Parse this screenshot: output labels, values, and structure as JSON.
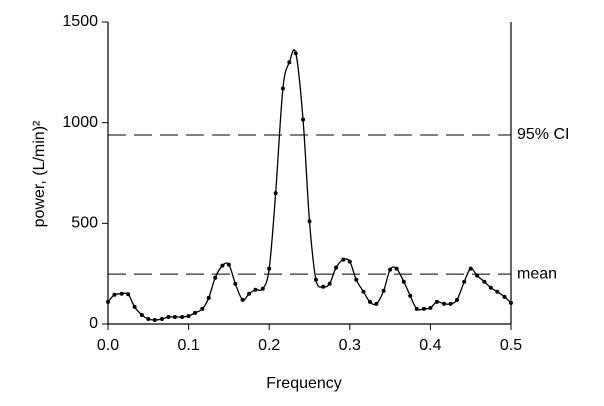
{
  "chart_data": {
    "type": "line",
    "xlabel": "Frequency",
    "ylabel": "power, (L/min)²",
    "x": [
      0.0,
      0.008,
      0.017,
      0.025,
      0.033,
      0.042,
      0.05,
      0.058,
      0.067,
      0.075,
      0.083,
      0.092,
      0.1,
      0.108,
      0.117,
      0.125,
      0.133,
      0.142,
      0.15,
      0.158,
      0.167,
      0.175,
      0.183,
      0.192,
      0.2,
      0.208,
      0.217,
      0.225,
      0.233,
      0.242,
      0.25,
      0.258,
      0.267,
      0.275,
      0.283,
      0.292,
      0.3,
      0.308,
      0.317,
      0.325,
      0.333,
      0.342,
      0.35,
      0.358,
      0.367,
      0.375,
      0.383,
      0.392,
      0.4,
      0.408,
      0.417,
      0.425,
      0.433,
      0.442,
      0.45,
      0.458,
      0.467,
      0.475,
      0.483,
      0.492,
      0.5
    ],
    "series": [
      {
        "color": "#000000",
        "values": [
          110,
          145,
          150,
          148,
          85,
          45,
          25,
          20,
          25,
          35,
          35,
          35,
          40,
          55,
          75,
          130,
          230,
          290,
          295,
          200,
          120,
          150,
          170,
          175,
          275,
          650,
          1170,
          1300,
          1345,
          1015,
          510,
          220,
          185,
          200,
          280,
          320,
          310,
          220,
          160,
          110,
          100,
          165,
          270,
          275,
          210,
          140,
          75,
          75,
          80,
          110,
          100,
          100,
          120,
          210,
          275,
          240,
          210,
          180,
          160,
          135,
          105
        ]
      }
    ],
    "hlines": [
      {
        "label": "95% CI",
        "value": 939
      },
      {
        "label": "mean",
        "value": 248
      }
    ],
    "xlim": [
      0,
      0.5
    ],
    "xticks": [
      {
        "value": 0,
        "label": "0.0"
      },
      0.1,
      0.2,
      0.3,
      0.4,
      0.5
    ],
    "ylim": [
      0,
      1500
    ],
    "yticks": [
      0,
      500,
      1000,
      1500
    ]
  }
}
